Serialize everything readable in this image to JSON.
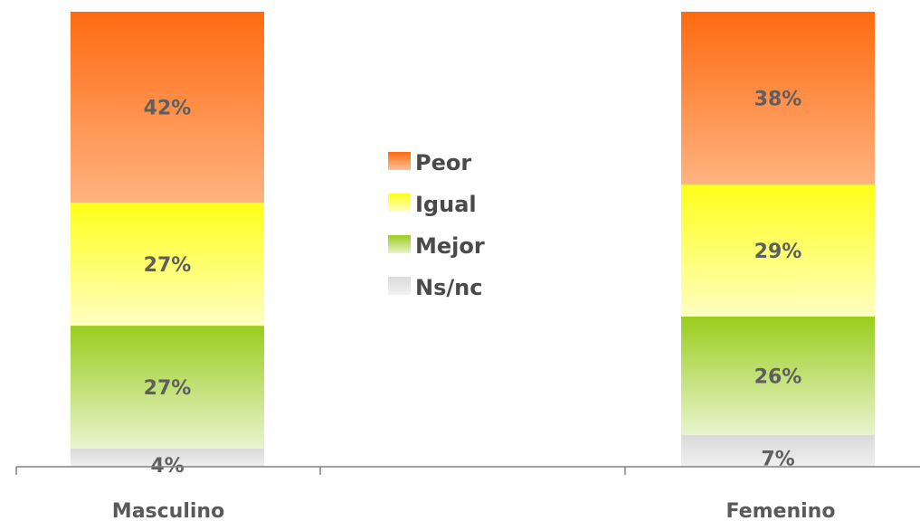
{
  "chart_data": {
    "type": "bar",
    "stacked": true,
    "percent": true,
    "title": "",
    "xlabel": "",
    "ylabel": "",
    "categories": [
      "Masculino",
      "Femenino"
    ],
    "series": [
      {
        "name": "Ns/nc",
        "values": [
          4,
          7
        ],
        "labels": [
          "4%",
          "7%"
        ],
        "color": "#d9d9d9"
      },
      {
        "name": "Mejor",
        "values": [
          27,
          26
        ],
        "labels": [
          "27%",
          "26%"
        ],
        "color": "#9acd1e"
      },
      {
        "name": "Igual",
        "values": [
          27,
          29
        ],
        "labels": [
          "27%",
          "29%"
        ],
        "color": "#ffff1a"
      },
      {
        "name": "Peor",
        "values": [
          42,
          38
        ],
        "labels": [
          "42%",
          "38%"
        ],
        "color": "#ff6a10"
      }
    ],
    "ylim": [
      0,
      100
    ],
    "grid": false,
    "legend": {
      "position": "center",
      "order": [
        "Peor",
        "Igual",
        "Mejor",
        "Ns/nc"
      ]
    }
  }
}
